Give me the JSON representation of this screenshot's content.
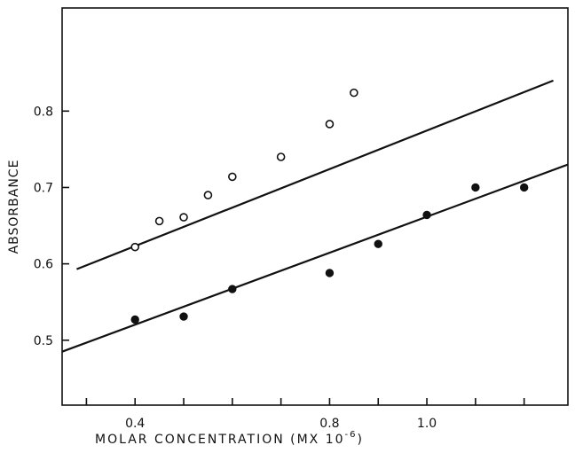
{
  "chart_data": {
    "type": "scatter",
    "title": "",
    "xlabel": "MOLAR CONCENTRATION (MX 10",
    "xlabel_exponent": "-6",
    "xlabel_close": ")",
    "ylabel": "ABSORBANCE",
    "xlim": [
      0.25,
      1.29
    ],
    "ylim": [
      0.415,
      0.935
    ],
    "x_ticks": [
      0.3,
      0.4,
      0.5,
      0.6,
      0.7,
      0.8,
      0.9,
      1.0,
      1.1,
      1.2
    ],
    "x_tick_labels": [
      {
        "value": 0.4,
        "label": "0.4"
      },
      {
        "value": 0.8,
        "label": "0.8"
      },
      {
        "value": 1.0,
        "label": "1.0"
      }
    ],
    "y_ticks": [
      0.5,
      0.6,
      0.7,
      0.8
    ],
    "y_tick_labels": [
      {
        "value": 0.5,
        "label": "0.5"
      },
      {
        "value": 0.6,
        "label": "0.6"
      },
      {
        "value": 0.7,
        "label": "0.7"
      },
      {
        "value": 0.8,
        "label": "0.8"
      }
    ],
    "grid": false,
    "legend": "none",
    "series": [
      {
        "marker": "open-circle",
        "x": [
          0.4,
          0.45,
          0.5,
          0.55,
          0.6,
          0.7,
          0.8,
          0.85
        ],
        "y": [
          0.622,
          0.656,
          0.661,
          0.69,
          0.714,
          0.74,
          0.783,
          0.824
        ],
        "fit_line": {
          "x": [
            0.28,
            1.26
          ],
          "y": [
            0.593,
            0.84
          ]
        }
      },
      {
        "marker": "filled-circle",
        "x": [
          0.4,
          0.5,
          0.6,
          0.8,
          0.9,
          1.0,
          1.1,
          1.2
        ],
        "y": [
          0.527,
          0.531,
          0.567,
          0.588,
          0.626,
          0.664,
          0.7,
          0.7
        ],
        "fit_line": {
          "x": [
            0.25,
            1.29
          ],
          "y": [
            0.485,
            0.73
          ]
        }
      }
    ]
  }
}
